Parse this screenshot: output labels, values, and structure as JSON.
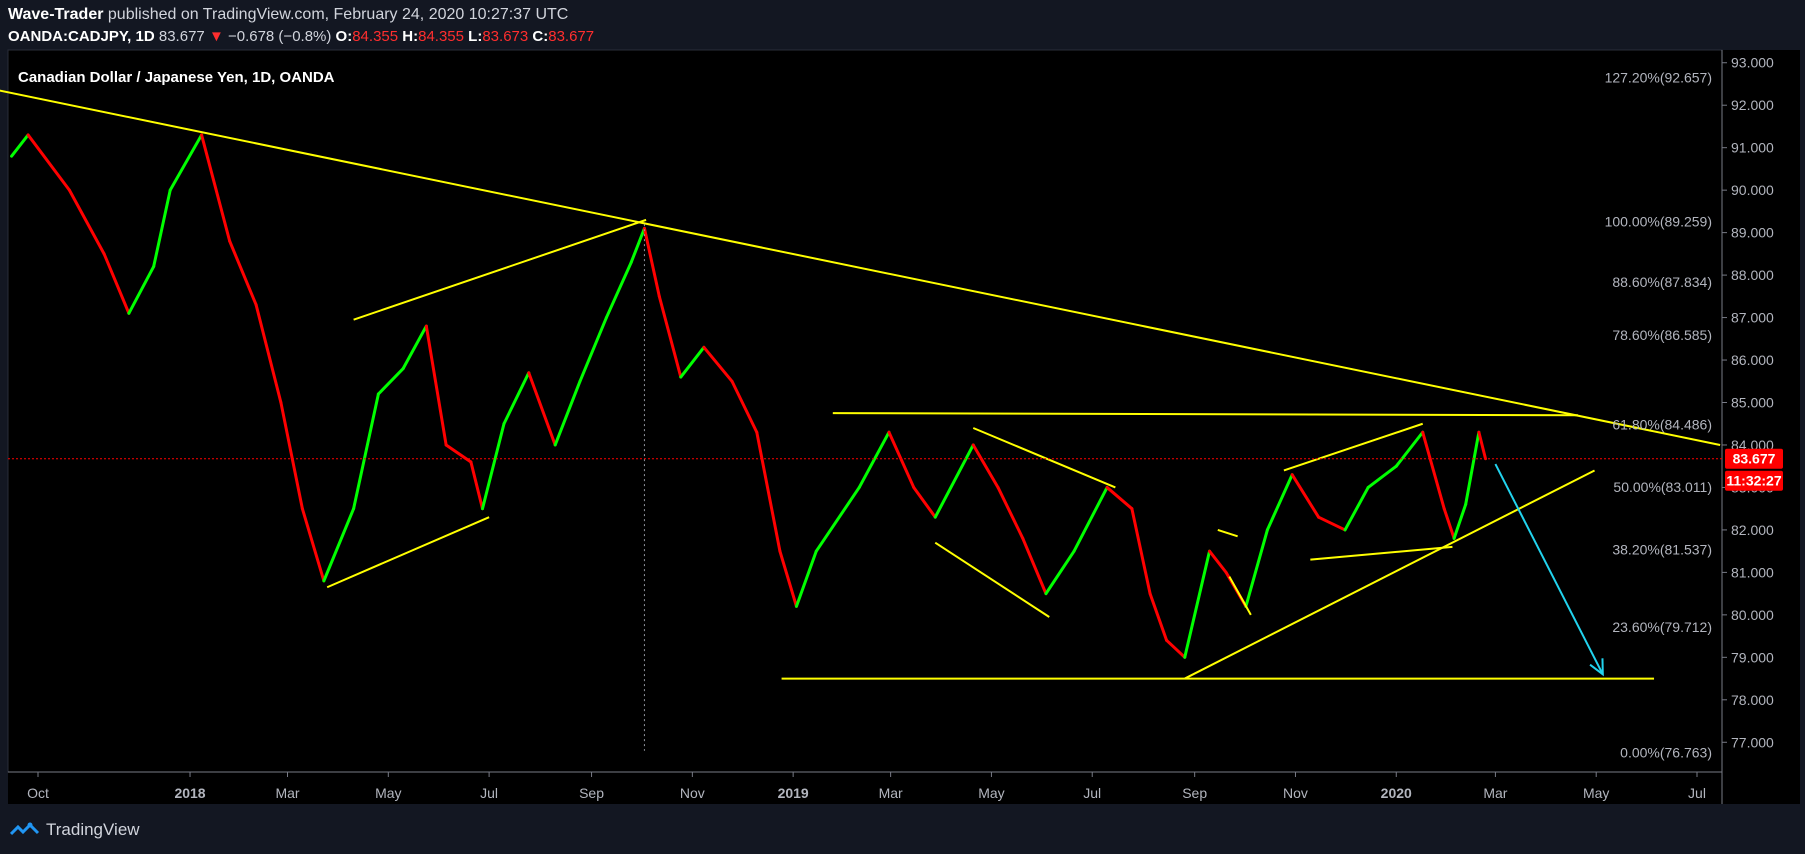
{
  "header": {
    "author": "Wave-Trader",
    "published_text": "published on TradingView.com, February 24, 2020 10:27:37 UTC",
    "symbol": "OANDA:CADJPY, 1D",
    "last": "83.677",
    "change": "−0.678 (−0.8%)",
    "o_label": "O:",
    "o_val": "84.355",
    "h_label": "H:",
    "h_val": "84.355",
    "l_label": "L:",
    "l_val": "83.673",
    "c_label": "C:",
    "c_val": "83.677"
  },
  "footer": {
    "brand": "TradingView"
  },
  "colors": {
    "background": "#000000",
    "frame": "#131722",
    "up": "#00ff00",
    "down": "#ff0000",
    "annotation": "#ffff00",
    "arrow": "#22d3ee",
    "price_label": "#ff0000"
  },
  "chart_data": {
    "type": "candlestick",
    "title": "Canadian Dollar / Japanese Yen, 1D, OANDA",
    "ylim": [
      76.3,
      93.3
    ],
    "y_ticks": [
      "77.000",
      "78.000",
      "79.000",
      "80.000",
      "81.000",
      "82.000",
      "83.000",
      "84.000",
      "85.000",
      "86.000",
      "87.000",
      "88.000",
      "89.000",
      "90.000",
      "91.000",
      "92.000",
      "93.000"
    ],
    "x_ticks": [
      "Oct",
      "2018",
      "Mar",
      "May",
      "Jul",
      "Sep",
      "Nov",
      "2019",
      "Mar",
      "May",
      "Jul",
      "Sep",
      "Nov",
      "2020",
      "Mar",
      "May",
      "Jul"
    ],
    "x_tick_dates": [
      "2017-10-01",
      "2018-01-01",
      "2018-03-01",
      "2018-05-01",
      "2018-07-01",
      "2018-09-01",
      "2018-11-01",
      "2019-01-01",
      "2019-03-01",
      "2019-05-01",
      "2019-07-01",
      "2019-09-01",
      "2019-11-01",
      "2020-01-01",
      "2020-03-01",
      "2020-05-01",
      "2020-07-01"
    ],
    "current_price": "83.677",
    "countdown": "11:32:27",
    "fib_levels": [
      {
        "label": "127.20%(92.657)",
        "value": 92.657
      },
      {
        "label": "100.00%(89.259)",
        "value": 89.259
      },
      {
        "label": "88.60%(87.834)",
        "value": 87.834
      },
      {
        "label": "78.60%(86.585)",
        "value": 86.585
      },
      {
        "label": "61.80%(84.486)",
        "value": 84.486
      },
      {
        "label": "50.00%(83.011)",
        "value": 83.011
      },
      {
        "label": "38.20%(81.537)",
        "value": 81.537
      },
      {
        "label": "23.60%(79.712)",
        "value": 79.712
      },
      {
        "label": "0.00%(76.763)",
        "value": 76.763
      }
    ],
    "price_path": [
      [
        "2017-09-15",
        90.8
      ],
      [
        "2017-09-25",
        91.3
      ],
      [
        "2017-10-20",
        90.0
      ],
      [
        "2017-11-10",
        88.5
      ],
      [
        "2017-11-25",
        87.1
      ],
      [
        "2017-12-10",
        88.2
      ],
      [
        "2017-12-20",
        90.0
      ],
      [
        "2018-01-08",
        91.3
      ],
      [
        "2018-01-25",
        88.8
      ],
      [
        "2018-02-10",
        87.3
      ],
      [
        "2018-02-25",
        85.0
      ],
      [
        "2018-03-10",
        82.5
      ],
      [
        "2018-03-23",
        80.8
      ],
      [
        "2018-04-10",
        82.5
      ],
      [
        "2018-04-25",
        85.2
      ],
      [
        "2018-05-10",
        85.8
      ],
      [
        "2018-05-24",
        86.8
      ],
      [
        "2018-06-05",
        84.0
      ],
      [
        "2018-06-20",
        83.6
      ],
      [
        "2018-06-27",
        82.5
      ],
      [
        "2018-07-10",
        84.5
      ],
      [
        "2018-07-25",
        85.7
      ],
      [
        "2018-08-10",
        84.0
      ],
      [
        "2018-08-25",
        85.5
      ],
      [
        "2018-09-10",
        87.0
      ],
      [
        "2018-09-25",
        88.3
      ],
      [
        "2018-10-03",
        89.1
      ],
      [
        "2018-10-12",
        87.5
      ],
      [
        "2018-10-25",
        85.6
      ],
      [
        "2018-11-08",
        86.3
      ],
      [
        "2018-11-25",
        85.5
      ],
      [
        "2018-12-10",
        84.3
      ],
      [
        "2018-12-24",
        81.5
      ],
      [
        "2019-01-03",
        80.2
      ],
      [
        "2019-01-15",
        81.5
      ],
      [
        "2019-02-10",
        83.0
      ],
      [
        "2019-02-28",
        84.3
      ],
      [
        "2019-03-15",
        83.0
      ],
      [
        "2019-03-28",
        82.3
      ],
      [
        "2019-04-20",
        84.0
      ],
      [
        "2019-05-05",
        83.0
      ],
      [
        "2019-05-20",
        81.8
      ],
      [
        "2019-06-03",
        80.5
      ],
      [
        "2019-06-20",
        81.5
      ],
      [
        "2019-07-10",
        83.0
      ],
      [
        "2019-07-25",
        82.5
      ],
      [
        "2019-08-05",
        80.5
      ],
      [
        "2019-08-15",
        79.4
      ],
      [
        "2019-08-26",
        79.0
      ],
      [
        "2019-09-10",
        81.5
      ],
      [
        "2019-09-20",
        81.0
      ],
      [
        "2019-10-02",
        80.2
      ],
      [
        "2019-10-15",
        82.0
      ],
      [
        "2019-10-30",
        83.3
      ],
      [
        "2019-11-15",
        82.3
      ],
      [
        "2019-12-01",
        82.0
      ],
      [
        "2019-12-15",
        83.0
      ],
      [
        "2020-01-01",
        83.5
      ],
      [
        "2020-01-17",
        84.3
      ],
      [
        "2020-01-30",
        82.5
      ],
      [
        "2020-02-05",
        81.8
      ],
      [
        "2020-02-12",
        82.6
      ],
      [
        "2020-02-20",
        84.3
      ],
      [
        "2020-02-24",
        83.677
      ]
    ],
    "annotations": {
      "trendline_top": [
        [
          "2017-09-01",
          92.4
        ],
        [
          "2020-07-15",
          84.0
        ]
      ],
      "horizontal_resistance": [
        [
          "2019-01-25",
          84.75
        ],
        [
          "2020-04-20",
          84.7
        ]
      ],
      "horizontal_support": [
        [
          "2018-12-25",
          78.5
        ],
        [
          "2020-06-05",
          78.5
        ]
      ],
      "support_trend": [
        [
          "2019-08-26",
          78.5
        ],
        [
          "2020-04-30",
          83.4
        ]
      ],
      "channel_lines": [
        [
          [
            "2018-03-25",
            80.65
          ],
          [
            "2018-07-01",
            82.3
          ]
        ],
        [
          [
            "2018-04-10",
            86.95
          ],
          [
            "2018-10-04",
            89.3
          ]
        ],
        [
          [
            "2019-03-28",
            81.7
          ],
          [
            "2019-06-05",
            79.95
          ]
        ],
        [
          [
            "2019-04-20",
            84.4
          ],
          [
            "2019-07-15",
            83.0
          ]
        ],
        [
          [
            "2019-09-15",
            82.0
          ],
          [
            "2019-09-27",
            81.85
          ]
        ],
        [
          [
            "2019-09-22",
            80.9
          ],
          [
            "2019-10-05",
            80.0
          ]
        ],
        [
          [
            "2019-10-25",
            83.4
          ],
          [
            "2020-01-17",
            84.5
          ]
        ],
        [
          [
            "2019-11-10",
            81.3
          ],
          [
            "2020-02-04",
            81.6
          ]
        ]
      ],
      "projection_arrow": [
        [
          "2020-03-01",
          83.55
        ],
        [
          "2020-05-05",
          78.6
        ]
      ],
      "vertical_dotted_date": "2018-10-03"
    }
  }
}
